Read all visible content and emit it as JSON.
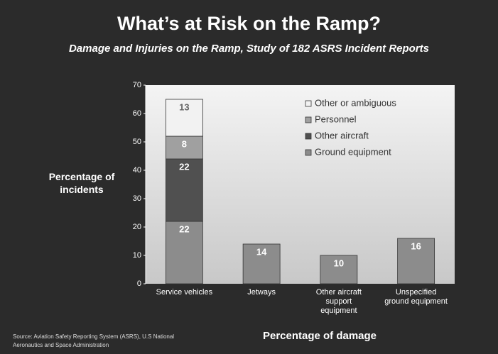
{
  "chart_data": {
    "type": "stacked_bar",
    "title": "What’s at Risk on the Ramp?",
    "subtitle": "Damage and Injuries on the Ramp, Study of 182 ASRS Incident Reports",
    "y_label": "Percentage of incidents",
    "x_label": "Percentage of damage",
    "source": "Source: Aviation Safety Reporting System (ASRS), U.S National Aeronautics and Space Administration",
    "categories": [
      "Service vehicles",
      "Jetways",
      "Other aircraft support equipment",
      "Unspecified ground equipment"
    ],
    "series": [
      {
        "name": "Ground equipment",
        "color": "#8c8c8c",
        "values": [
          22,
          14,
          10,
          16
        ]
      },
      {
        "name": "Other aircraft",
        "color": "#505050",
        "values": [
          22,
          null,
          null,
          null
        ]
      },
      {
        "name": "Personnel",
        "color": "#a0a0a0",
        "values": [
          8,
          null,
          null,
          null
        ]
      },
      {
        "name": "Other or ambiguous",
        "color": "#f2f2f2",
        "values": [
          13,
          null,
          null,
          null
        ]
      }
    ],
    "ylim": [
      0,
      70
    ],
    "yticks": [
      0,
      10,
      20,
      30,
      40,
      50,
      60,
      70
    ],
    "legend": "upper right"
  }
}
